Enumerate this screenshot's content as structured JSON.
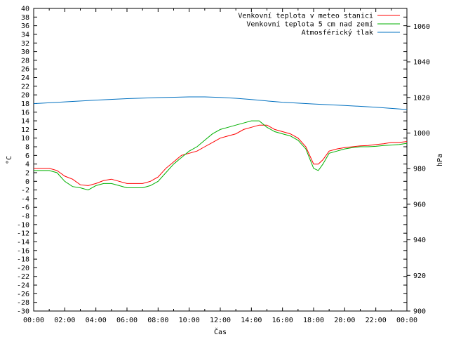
{
  "chart_data": {
    "type": "line",
    "title": "",
    "xlabel": "Čas",
    "ylabel_left": "°C",
    "ylabel_right": "hPa",
    "y_left_lim": [
      -30,
      40
    ],
    "y_right_lim": [
      900,
      1070
    ],
    "x_lim_hours": [
      0,
      24
    ],
    "grid": false,
    "legend_position": "top-right",
    "x_ticks": [
      "00:00",
      "02:00",
      "04:00",
      "06:00",
      "08:00",
      "10:00",
      "12:00",
      "14:00",
      "16:00",
      "18:00",
      "20:00",
      "22:00",
      "00:00"
    ],
    "y_left_ticks": [
      "-30",
      "-28",
      "-26",
      "-24",
      "-22",
      "-20",
      "-18",
      "-16",
      "-14",
      "-12",
      "-10",
      "-8",
      "-6",
      "-4",
      "-2",
      "0",
      "2",
      "4",
      "6",
      "8",
      "10",
      "12",
      "14",
      "16",
      "18",
      "20",
      "22",
      "24",
      "26",
      "28",
      "30",
      "32",
      "34",
      "36",
      "38",
      "40"
    ],
    "y_right_ticks": [
      "900",
      "920",
      "940",
      "960",
      "980",
      "1000",
      "1020",
      "1040",
      "1060"
    ],
    "series": [
      {
        "name": "Venkovní teplota v meteo stanici",
        "axis": "left",
        "color": "#ff0000",
        "x": [
          0,
          1,
          1.5,
          2,
          2.5,
          3,
          3.5,
          4,
          4.5,
          5,
          5.5,
          6,
          6.5,
          7,
          7.5,
          8,
          8.5,
          9,
          9.5,
          10,
          10.5,
          11,
          11.5,
          12,
          12.5,
          13,
          13.5,
          14,
          14.5,
          15,
          15.5,
          16,
          16.5,
          17,
          17.5,
          18,
          18.3,
          18.6,
          19,
          19.5,
          20,
          20.5,
          21,
          21.5,
          22,
          22.5,
          23,
          23.5,
          24
        ],
        "values": [
          3,
          3,
          2.5,
          1.2,
          0.5,
          -0.8,
          -1,
          -0.5,
          0.2,
          0.5,
          0,
          -0.5,
          -0.5,
          -0.5,
          0,
          1,
          3,
          4.5,
          6,
          6.5,
          7,
          8,
          9,
          10,
          10.5,
          11,
          12,
          12.5,
          13,
          13,
          12,
          11.5,
          11,
          10,
          8,
          4,
          4,
          5,
          7,
          7.5,
          7.8,
          8,
          8.2,
          8.3,
          8.5,
          8.7,
          9,
          9,
          9.2
        ]
      },
      {
        "name": "Venkovní teplota 5 cm nad zemí",
        "axis": "left",
        "color": "#00b000",
        "x": [
          0,
          1,
          1.5,
          2,
          2.5,
          3,
          3.5,
          4,
          4.5,
          5,
          5.5,
          6,
          6.5,
          7,
          7.5,
          8,
          8.5,
          9,
          9.5,
          10,
          10.5,
          11,
          11.5,
          12,
          12.5,
          13,
          13.5,
          14,
          14.5,
          15,
          15.5,
          16,
          16.5,
          17,
          17.5,
          18,
          18.3,
          18.6,
          19,
          19.5,
          20,
          20.5,
          21,
          21.5,
          22,
          22.5,
          23,
          23.5,
          24
        ],
        "values": [
          2.5,
          2.5,
          2,
          0,
          -1.2,
          -1.5,
          -2,
          -1,
          -0.5,
          -0.5,
          -1,
          -1.5,
          -1.5,
          -1.5,
          -1,
          0,
          2,
          4,
          5.5,
          7,
          8,
          9.5,
          11,
          12,
          12.5,
          13,
          13.5,
          14,
          14,
          12.5,
          11.5,
          11,
          10.5,
          9.5,
          7.5,
          3,
          2.5,
          4,
          6.5,
          7,
          7.5,
          7.8,
          8,
          8,
          8.1,
          8.3,
          8.4,
          8.5,
          8.8
        ]
      },
      {
        "name": "Atmosférický tlak",
        "axis": "right",
        "color": "#0070c0",
        "x": [
          0,
          2,
          4,
          6,
          8,
          10,
          11,
          12,
          13,
          14,
          15,
          16,
          18,
          20,
          22,
          24
        ],
        "values": [
          1016.5,
          1017.5,
          1018.5,
          1019.3,
          1019.9,
          1020.3,
          1020.3,
          1020.0,
          1019.5,
          1018.8,
          1018.0,
          1017.3,
          1016.3,
          1015.5,
          1014.5,
          1013.2
        ]
      }
    ]
  }
}
